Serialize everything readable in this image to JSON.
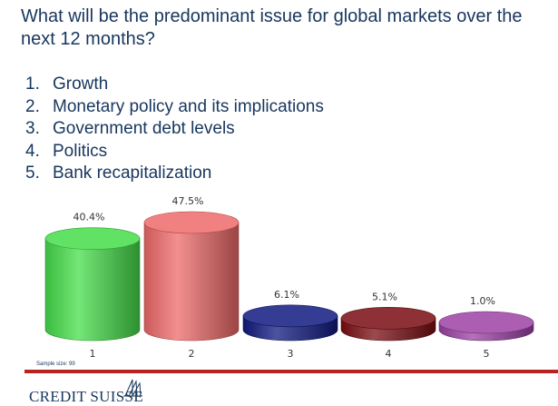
{
  "question": "What will be the predominant issue for global markets over the next 12 months?",
  "options": [
    {
      "num": "1.",
      "label": "Growth"
    },
    {
      "num": "2.",
      "label": "Monetary policy and its implications"
    },
    {
      "num": "3.",
      "label": "Government debt levels"
    },
    {
      "num": "4.",
      "label": "Politics"
    },
    {
      "num": "5.",
      "label": "Bank recapitalization"
    }
  ],
  "chart_data": {
    "type": "bar",
    "style": "3d-cylinder",
    "categories": [
      "1",
      "2",
      "3",
      "4",
      "5"
    ],
    "values": [
      40.4,
      47.5,
      6.1,
      5.1,
      1.0
    ],
    "data_labels": [
      "40.4%",
      "47.5%",
      "6.1%",
      "5.1%",
      "1.0%"
    ],
    "colors": [
      "#45dd4a",
      "#ef6a6a",
      "#101a80",
      "#7a0d12",
      "#9c41a4"
    ],
    "ylim": [
      0,
      50
    ],
    "grid": false,
    "legend": "none"
  },
  "sample_size": "Sample size: 99",
  "brand": {
    "name": "CREDIT SUISSE",
    "logo_icon": "sails-icon",
    "color": "#17365d"
  },
  "accent_rule_color": "#b8231f"
}
